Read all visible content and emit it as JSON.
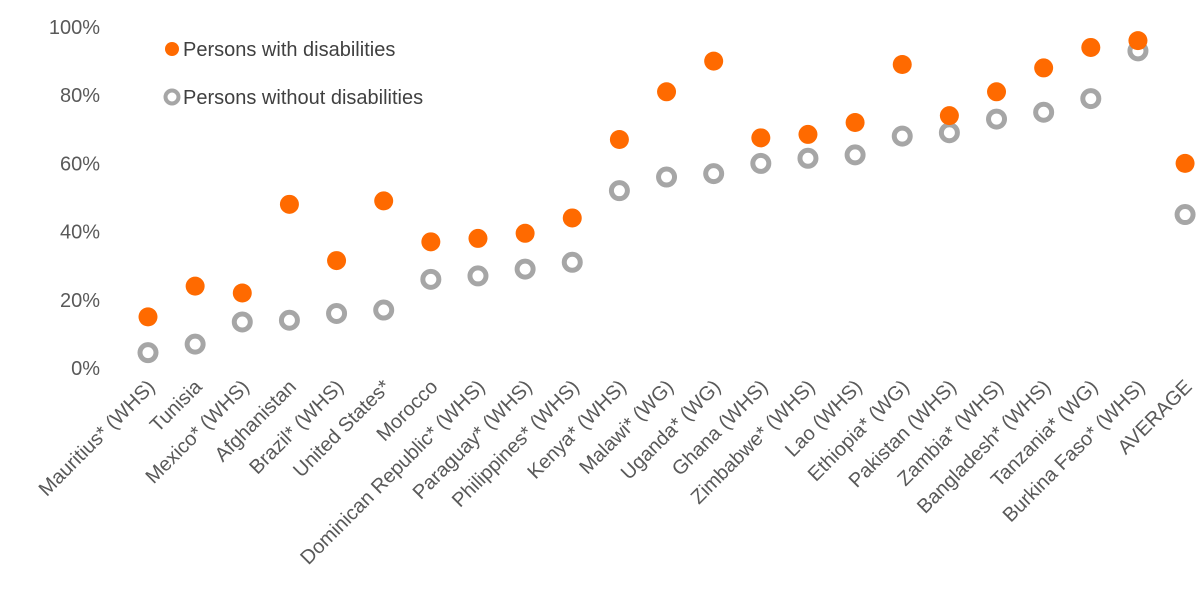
{
  "chart_data": {
    "type": "scatter",
    "title": "",
    "xlabel": "",
    "ylabel": "",
    "ylim": [
      0,
      100
    ],
    "y_ticks": [
      "0%",
      "20%",
      "40%",
      "60%",
      "80%",
      "100%"
    ],
    "grid": false,
    "legend_position": "top-left",
    "categories": [
      "Mauritius* (WHS)",
      "Tunisia",
      "Mexico* (WHS)",
      "Afghanistan",
      "Brazil* (WHS)",
      "United States*",
      "Morocco",
      "Dominican Republic* (WHS)",
      "Paraguay* (WHS)",
      "Philippines* (WHS)",
      "Kenya* (WHS)",
      "Malawi* (WG)",
      "Uganda* (WG)",
      "Ghana (WHS)",
      "Zimbabwe* (WHS)",
      "Lao (WHS)",
      "Ethiopia* (WG)",
      "Pakistan (WHS)",
      "Zambia* (WHS)",
      "Bangladesh* (WHS)",
      "Tanzania* (WG)",
      "Burkina Faso* (WHS)",
      "AVERAGE"
    ],
    "series": [
      {
        "name": "Persons with disabilities",
        "color": "#FF6A00",
        "marker": "filled-circle",
        "values": [
          15,
          24,
          22,
          48,
          31.5,
          49,
          37,
          38,
          39.5,
          44,
          67,
          81,
          90,
          67.5,
          68.5,
          72,
          89,
          74,
          81,
          88,
          94,
          96,
          60
        ]
      },
      {
        "name": "Persons without disabilities",
        "color": "#A6A6A6",
        "marker": "hollow-circle",
        "values": [
          4.5,
          7,
          13.5,
          14,
          16,
          17,
          26,
          27,
          29,
          31,
          52,
          56,
          57,
          60,
          61.5,
          62.5,
          68,
          69,
          73,
          75,
          79,
          93,
          45
        ]
      }
    ]
  }
}
